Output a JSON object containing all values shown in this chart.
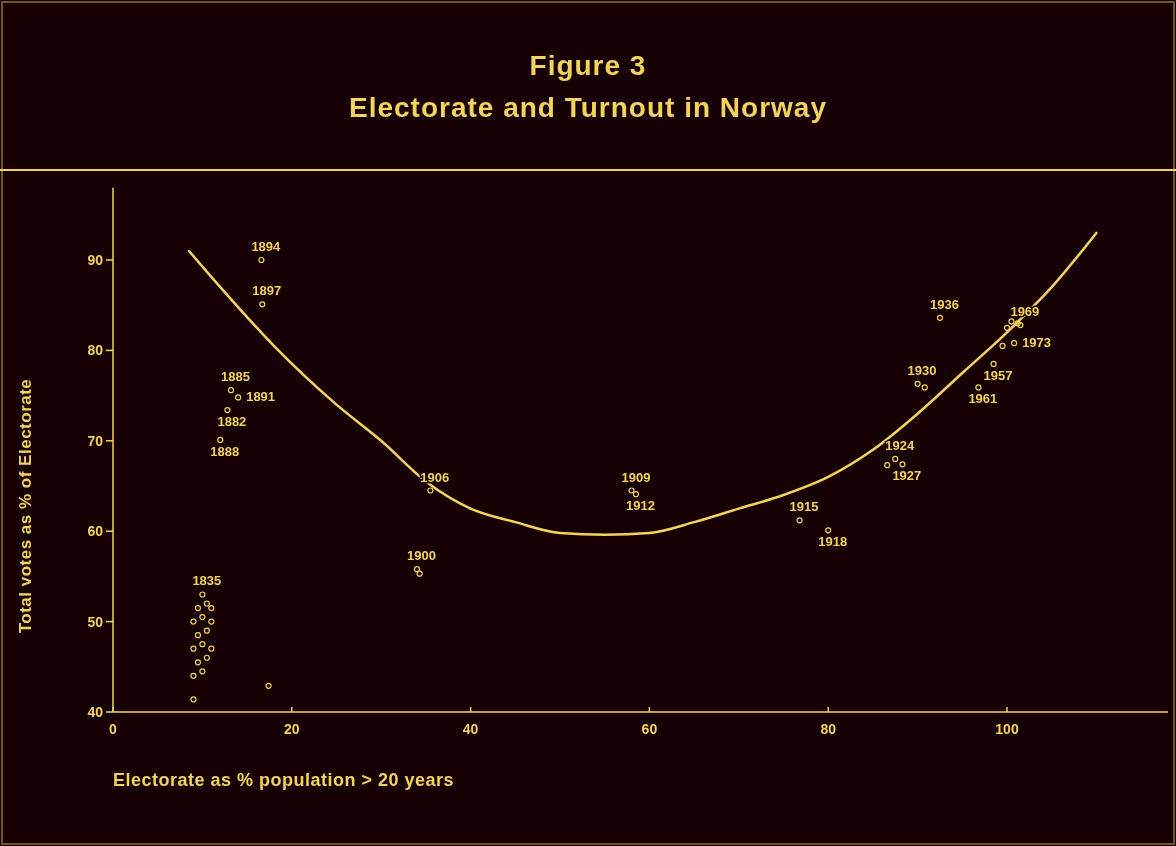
{
  "chart_data": {
    "type": "scatter",
    "title": "Figure 3",
    "subtitle": "Electorate and Turnout in Norway",
    "xlabel": "Electorate as % population > 20 years",
    "ylabel": "Total votes as % of Electorate",
    "xlim": [
      0,
      118
    ],
    "ylim": [
      40,
      98
    ],
    "xticks": [
      0,
      20,
      40,
      60,
      80,
      100
    ],
    "yticks": [
      40,
      50,
      60,
      70,
      80,
      90
    ],
    "grid": false,
    "marker": "circle",
    "series": [
      {
        "color": "#f2d45c",
        "x": [
          16.6,
          16.7,
          13.2,
          14.0,
          12.8,
          12.0,
          34.0,
          34.3,
          35.5,
          58.0,
          58.5,
          76.8,
          80.0,
          86.6,
          87.5,
          88.3,
          90.0,
          90.8,
          92.5,
          100.5,
          101.2,
          99.5,
          98.5,
          96.8,
          100.0,
          101.5,
          100.8,
          9.0,
          17.4,
          9.0,
          10.0,
          9.5,
          10.5,
          9.0,
          10.0,
          11.0,
          9.5,
          10.5,
          9.0,
          10.0,
          11.0,
          9.5,
          10.5,
          11.0,
          10.0
        ],
        "values": [
          90.0,
          85.1,
          75.6,
          74.8,
          73.4,
          70.1,
          55.8,
          55.3,
          64.5,
          64.5,
          64.1,
          61.2,
          60.1,
          67.3,
          68.0,
          67.4,
          76.3,
          75.9,
          83.6,
          83.2,
          83.0,
          80.5,
          78.5,
          75.9,
          82.5,
          82.8,
          80.8,
          41.4,
          42.9,
          44.0,
          44.5,
          45.5,
          46.0,
          47.0,
          47.5,
          47.0,
          48.5,
          49.0,
          50.0,
          50.5,
          50.0,
          51.5,
          52.0,
          51.5,
          53.0
        ]
      },
      {
        "type": "line",
        "color": "#f2d45c",
        "line_style": "solid",
        "marker": "none",
        "x": [
          8.5,
          12,
          18,
          25,
          30,
          35,
          40,
          45,
          50,
          55,
          60,
          65,
          70,
          75,
          80,
          85,
          90,
          95,
          100,
          105,
          110
        ],
        "values": [
          91,
          87,
          80.5,
          74,
          70,
          65.5,
          62.5,
          61,
          59.8,
          59.6,
          59.8,
          61,
          62.5,
          64,
          66,
          69,
          73,
          77.5,
          82,
          87,
          93
        ]
      }
    ],
    "annotations": [
      {
        "text": "1894",
        "x": 16.6,
        "y": 90.0
      },
      {
        "text": "1897",
        "x": 16.7,
        "y": 85.1
      },
      {
        "text": "1885",
        "x": 13.2,
        "y": 75.6
      },
      {
        "text": "1891",
        "x": 14.0,
        "y": 74.8
      },
      {
        "text": "1882",
        "x": 12.8,
        "y": 73.4
      },
      {
        "text": "1888",
        "x": 12.0,
        "y": 70.1
      },
      {
        "text": "1900",
        "x": 34.0,
        "y": 55.8
      },
      {
        "text": "1906",
        "x": 35.5,
        "y": 64.5
      },
      {
        "text": "1909",
        "x": 58.0,
        "y": 64.5
      },
      {
        "text": "1912",
        "x": 58.5,
        "y": 64.1
      },
      {
        "text": "1915",
        "x": 76.8,
        "y": 61.2
      },
      {
        "text": "1918",
        "x": 80.0,
        "y": 60.1
      },
      {
        "text": "1924",
        "x": 87.5,
        "y": 68.0
      },
      {
        "text": "1927",
        "x": 88.3,
        "y": 67.4
      },
      {
        "text": "1930",
        "x": 90.0,
        "y": 76.3
      },
      {
        "text": "1936",
        "x": 92.5,
        "y": 83.6
      },
      {
        "text": "1969",
        "x": 101.5,
        "y": 82.8
      },
      {
        "text": "1973",
        "x": 100.8,
        "y": 80.8
      },
      {
        "text": "1957",
        "x": 98.5,
        "y": 78.5
      },
      {
        "text": "1961",
        "x": 96.8,
        "y": 75.9
      },
      {
        "text": "1835",
        "x": 10.0,
        "y": 53.0
      }
    ]
  }
}
